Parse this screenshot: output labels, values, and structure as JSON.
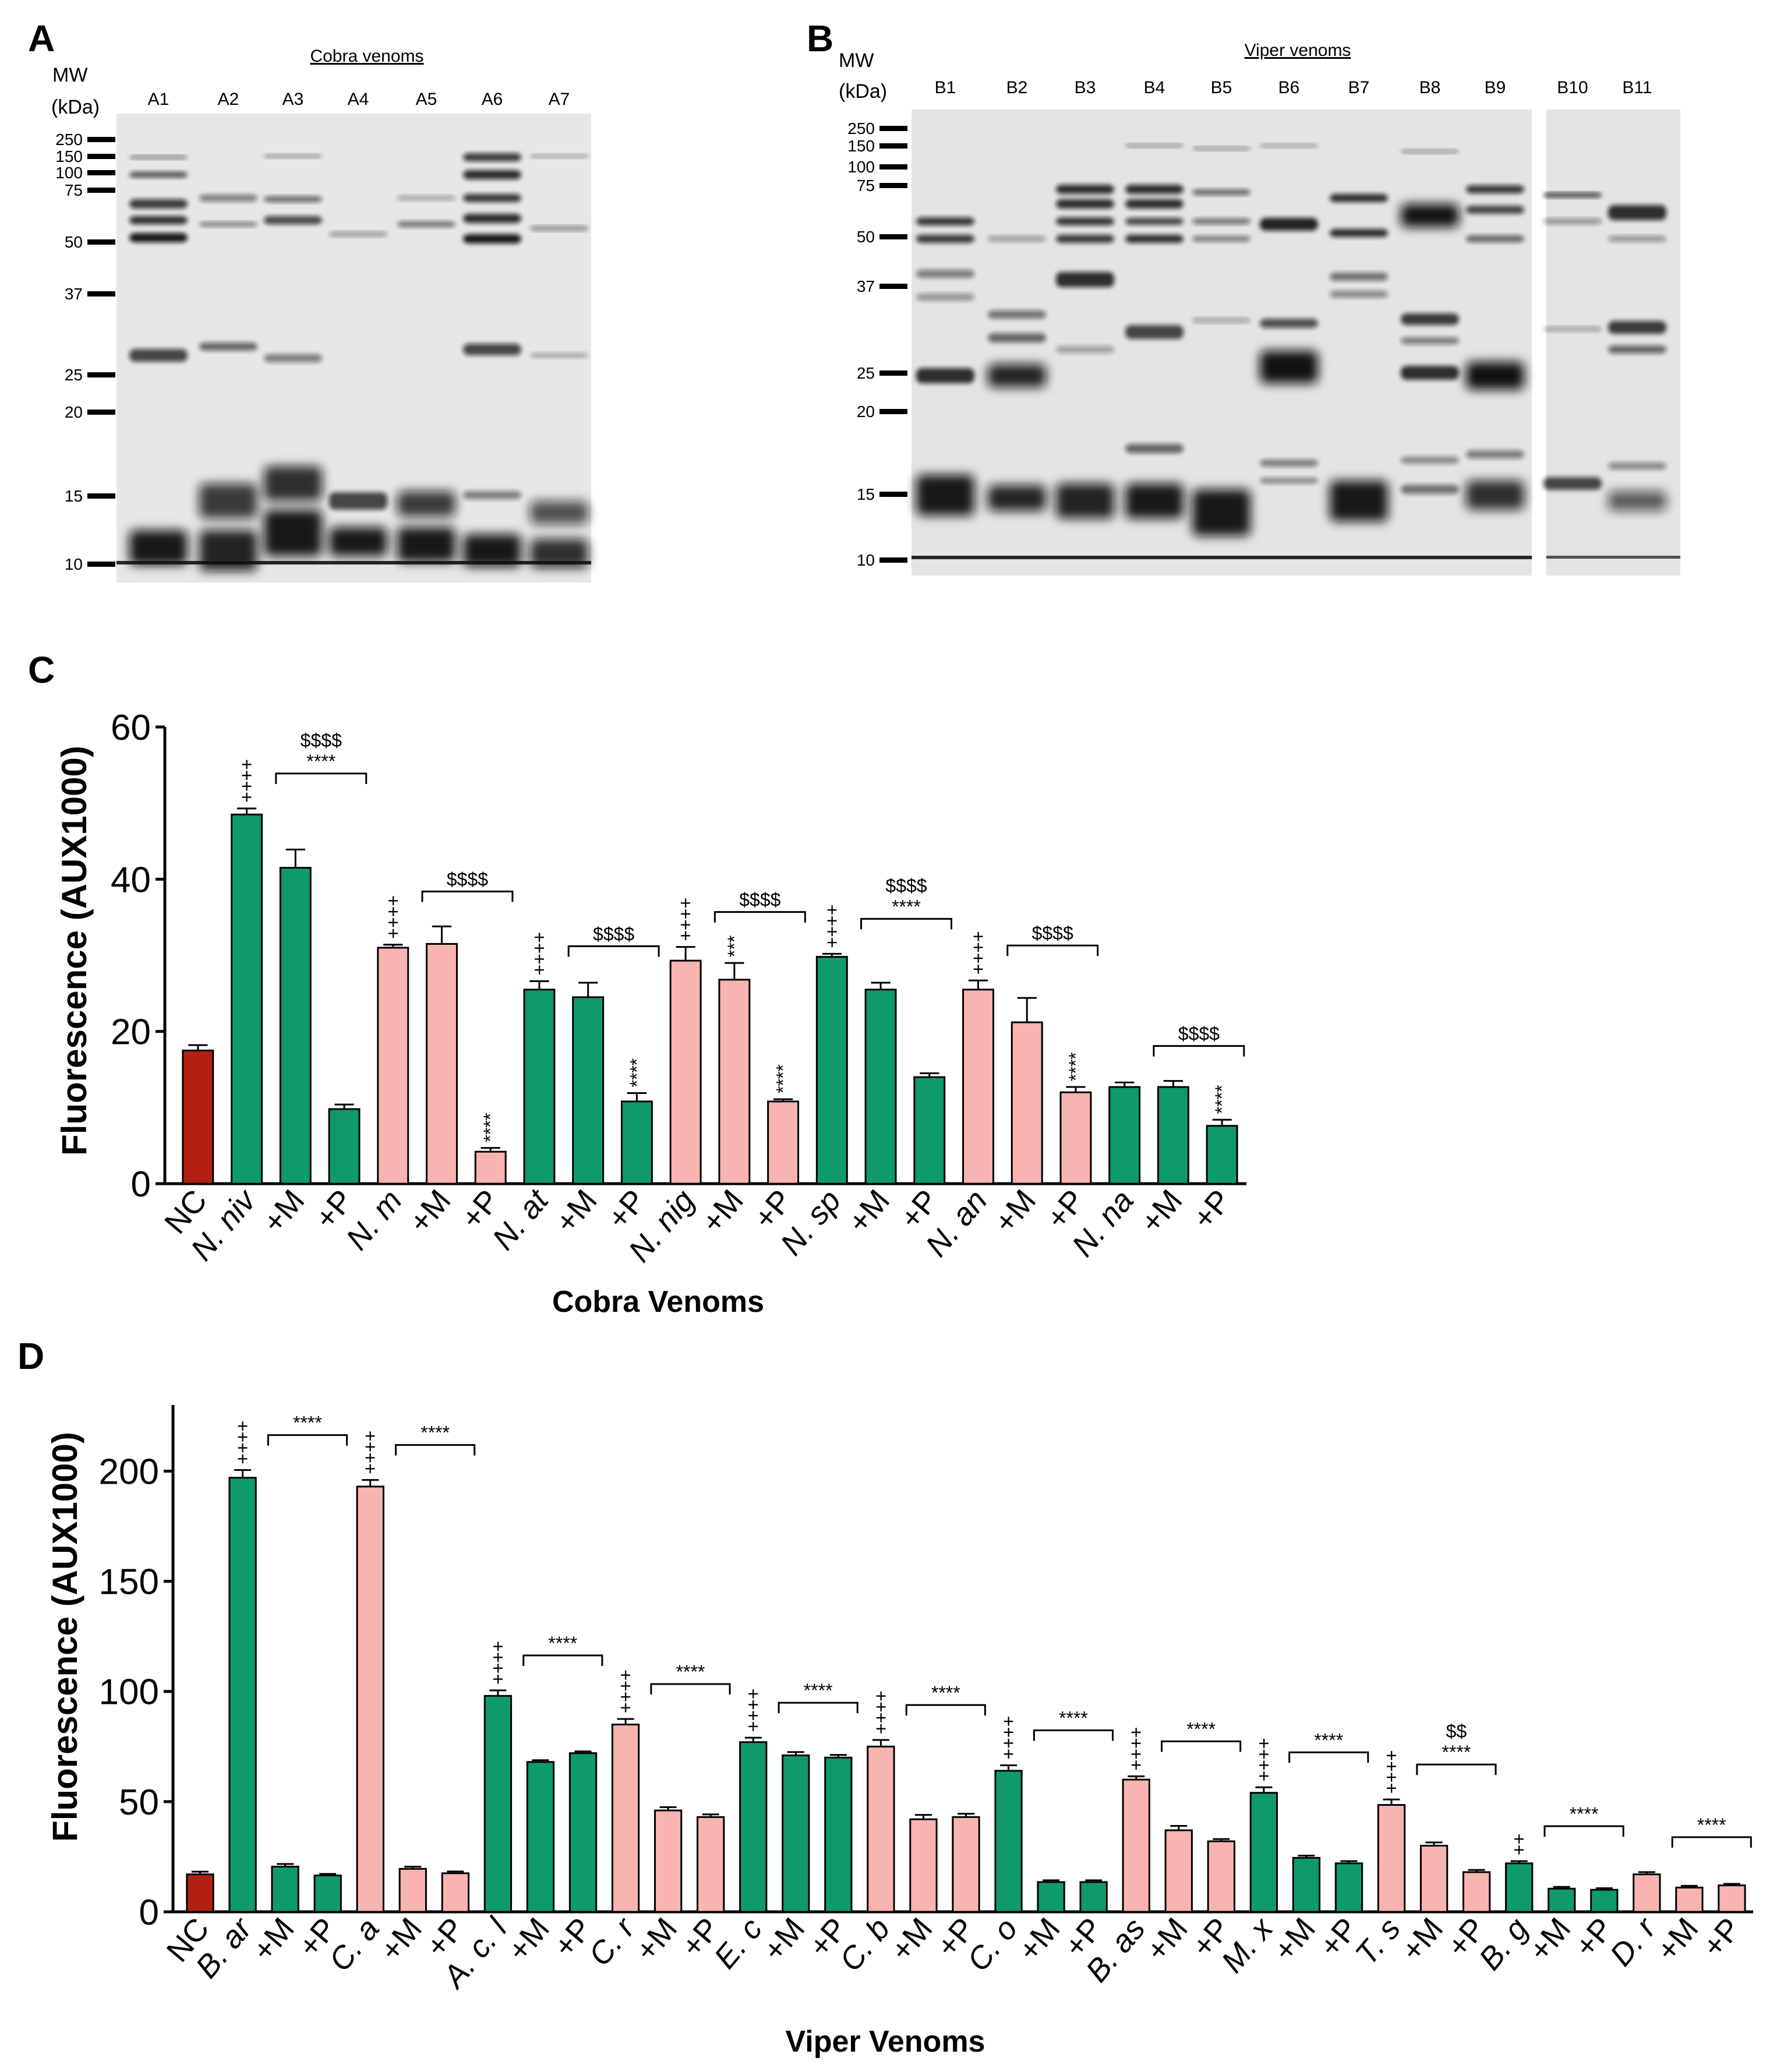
{
  "panels": {
    "A": "A",
    "B": "B",
    "C": "C",
    "D": "D"
  },
  "gelA": {
    "title": "Cobra venoms",
    "mw_head": "MW",
    "mw_unit": "(kDa)",
    "lanes": [
      "A1",
      "A2",
      "A3",
      "A4",
      "A5",
      "A6",
      "A7"
    ],
    "markers": [
      "250",
      "150",
      "100",
      "75",
      "50",
      "37",
      "25",
      "20",
      "15",
      "10"
    ]
  },
  "gelB": {
    "title": "Viper venoms",
    "mw_head": "MW",
    "mw_unit": "(kDa)",
    "lanes": [
      "B1",
      "B2",
      "B3",
      "B4",
      "B5",
      "B6",
      "B7",
      "B8",
      "B9",
      "B10",
      "B11"
    ],
    "markers": [
      "250",
      "150",
      "100",
      "75",
      "50",
      "37",
      "25",
      "20",
      "15",
      "10"
    ]
  },
  "colors": {
    "control": "#b22012",
    "green": "#0f9a6a",
    "pink": "#f8b4b0"
  },
  "chart_data": [
    {
      "type": "bar",
      "title": "",
      "ylabel": "Fluorescence (AUX1000)",
      "xlabel": "Cobra Venoms",
      "ylim": [
        0,
        60
      ],
      "yticks": [
        0,
        20,
        40,
        60
      ],
      "categories": [
        "NC",
        "N. niv",
        "+M",
        "+P",
        "N. m",
        "+M",
        "+P",
        "N. at",
        "+M",
        "+P",
        "N. nig",
        "+M",
        "+P",
        "N. sp",
        "+M",
        "+P",
        "N. an",
        "+M",
        "+P",
        "N. na",
        "+M",
        "+P"
      ],
      "italic": [
        false,
        true,
        false,
        false,
        true,
        false,
        false,
        true,
        false,
        false,
        true,
        false,
        false,
        true,
        false,
        false,
        true,
        false,
        false,
        true,
        false,
        false
      ],
      "values": [
        17.5,
        48.5,
        41.5,
        9.8,
        31,
        31.5,
        4.2,
        25.5,
        24.5,
        10.8,
        29.3,
        26.8,
        10.8,
        29.8,
        25.5,
        14,
        25.5,
        21.2,
        12,
        12.7,
        12.7,
        7.6
      ],
      "errors": [
        0.7,
        0.8,
        2.4,
        0.6,
        0.4,
        2.3,
        0.5,
        1.1,
        1.9,
        1.1,
        1.8,
        2.2,
        0.3,
        0.4,
        0.9,
        0.5,
        1.2,
        3.2,
        0.7,
        0.6,
        0.8,
        0.8
      ],
      "colors": [
        "control",
        "green",
        "green",
        "green",
        "pink",
        "pink",
        "pink",
        "green",
        "green",
        "green",
        "pink",
        "pink",
        "pink",
        "green",
        "green",
        "green",
        "pink",
        "pink",
        "pink",
        "green",
        "green",
        "green"
      ],
      "marks": [
        "",
        "++++",
        "",
        "",
        "++++",
        "",
        "****",
        "++++",
        "",
        "****",
        "++++",
        "***",
        "****",
        "++++",
        "",
        "",
        "++++",
        "",
        "****",
        "",
        "",
        "****"
      ],
      "brackets": [
        {
          "from": 2,
          "to": 3,
          "labels": [
            "$$$$",
            "****"
          ]
        },
        {
          "from": 5,
          "to": 6,
          "labels": [
            "$$$$"
          ]
        },
        {
          "from": 8,
          "to": 9,
          "labels": [
            "$$$$"
          ]
        },
        {
          "from": 11,
          "to": 12,
          "labels": [
            "$$$$"
          ]
        },
        {
          "from": 14,
          "to": 15,
          "labels": [
            "$$$$",
            "****"
          ]
        },
        {
          "from": 17,
          "to": 18,
          "labels": [
            "$$$$"
          ]
        },
        {
          "from": 20,
          "to": 21,
          "labels": [
            "$$$$"
          ]
        }
      ]
    },
    {
      "type": "bar",
      "title": "",
      "ylabel": "Fluorescence (AUX1000)",
      "xlabel": "Viper Venoms",
      "ylim": [
        0,
        230
      ],
      "yticks": [
        0,
        50,
        100,
        150,
        200
      ],
      "categories": [
        "NC",
        "B. ar",
        "+M",
        "+P",
        "C. a",
        "+M",
        "+P",
        "A. c. l",
        "+M",
        "+P",
        "C. r",
        "+M",
        "+P",
        "E. c",
        "+M",
        "+P",
        "C. b",
        "+M",
        "+P",
        "C. o",
        "+M",
        "+P",
        "B. as",
        "+M",
        "+P",
        "M. x",
        "+M",
        "+P",
        "T. s",
        "+M",
        "+P",
        "B. g",
        "+M",
        "+P",
        "D. r",
        "+M",
        "+P"
      ],
      "italic": [
        false,
        true,
        false,
        false,
        true,
        false,
        false,
        true,
        false,
        false,
        true,
        false,
        false,
        true,
        false,
        false,
        true,
        false,
        false,
        true,
        false,
        false,
        true,
        false,
        false,
        true,
        false,
        false,
        true,
        false,
        false,
        true,
        false,
        false,
        true,
        false,
        false
      ],
      "values": [
        17,
        197,
        20.5,
        16.5,
        193,
        19.5,
        17.5,
        98,
        68,
        72,
        85,
        46,
        43,
        77,
        71,
        70,
        75,
        42,
        43,
        64,
        13.5,
        13.5,
        60,
        37,
        32,
        54,
        24.5,
        22,
        48.5,
        30,
        18,
        22,
        10.5,
        10,
        17,
        11,
        12
      ],
      "errors": [
        1.2,
        3.5,
        1.2,
        0.7,
        3,
        1,
        0.8,
        2.5,
        0.8,
        0.8,
        2.5,
        1.5,
        1.2,
        2,
        1.5,
        1.2,
        3,
        2,
        1.5,
        2.5,
        0.8,
        0.8,
        1.5,
        2,
        1,
        2.5,
        1,
        1,
        2.5,
        1.5,
        1,
        1,
        0.8,
        0.7,
        1,
        0.8,
        0.7
      ],
      "colors": [
        "control",
        "green",
        "green",
        "green",
        "pink",
        "pink",
        "pink",
        "green",
        "green",
        "green",
        "pink",
        "pink",
        "pink",
        "green",
        "green",
        "green",
        "pink",
        "pink",
        "pink",
        "green",
        "green",
        "green",
        "pink",
        "pink",
        "pink",
        "green",
        "green",
        "green",
        "pink",
        "pink",
        "pink",
        "green",
        "green",
        "green",
        "pink",
        "pink",
        "pink"
      ],
      "marks": [
        "",
        "++++",
        "",
        "",
        "++++",
        "",
        "",
        "++++",
        "",
        "",
        "++++",
        "",
        "",
        "++++",
        "",
        "",
        "++++",
        "",
        "",
        "++++",
        "",
        "",
        "++++",
        "",
        "",
        "++++",
        "",
        "",
        "++++",
        "",
        "",
        "++",
        "",
        "",
        "",
        "",
        ""
      ],
      "brackets": [
        {
          "from": 2,
          "to": 3,
          "labels": [
            "****"
          ]
        },
        {
          "from": 5,
          "to": 6,
          "labels": [
            "****"
          ]
        },
        {
          "from": 8,
          "to": 9,
          "labels": [
            "****"
          ]
        },
        {
          "from": 11,
          "to": 12,
          "labels": [
            "****"
          ]
        },
        {
          "from": 14,
          "to": 15,
          "labels": [
            "****"
          ]
        },
        {
          "from": 17,
          "to": 18,
          "labels": [
            "****"
          ]
        },
        {
          "from": 20,
          "to": 21,
          "labels": [
            "****"
          ]
        },
        {
          "from": 23,
          "to": 24,
          "labels": [
            "****"
          ]
        },
        {
          "from": 26,
          "to": 27,
          "labels": [
            "****"
          ]
        },
        {
          "from": 29,
          "to": 30,
          "labels": [
            "$$",
            "****"
          ]
        },
        {
          "from": 32,
          "to": 33,
          "labels": [
            "****"
          ]
        },
        {
          "from": 35,
          "to": 36,
          "labels": [
            "****"
          ]
        }
      ]
    }
  ]
}
